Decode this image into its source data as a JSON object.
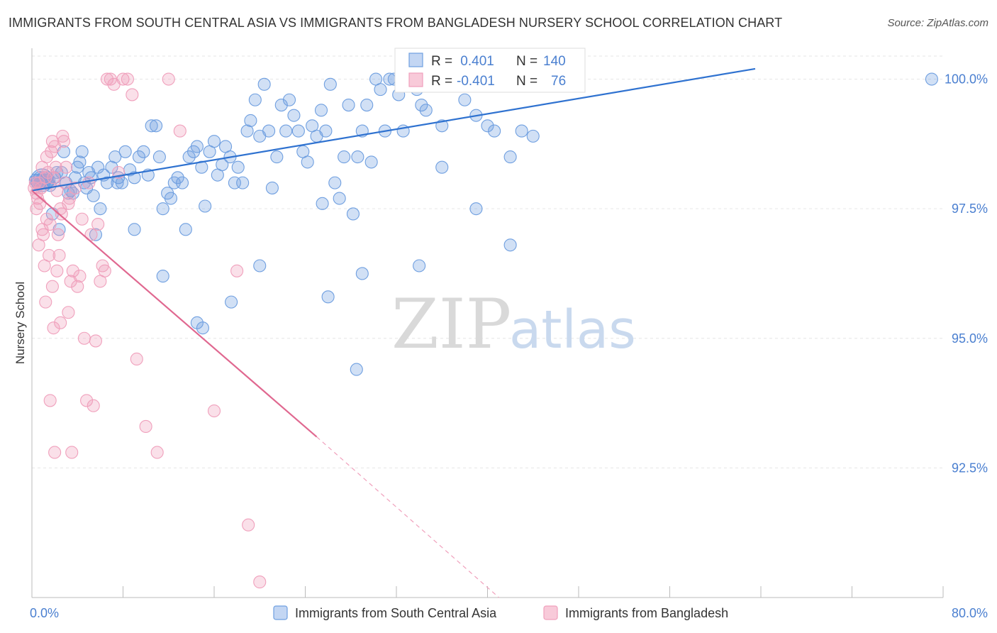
{
  "title": "IMMIGRANTS FROM SOUTH CENTRAL ASIA VS IMMIGRANTS FROM BANGLADESH NURSERY SCHOOL CORRELATION CHART",
  "source": "Source: ZipAtlas.com",
  "watermark": {
    "zip": "ZIP",
    "atlas": "atlas"
  },
  "colors": {
    "blue": "#6f9fe0",
    "blue_line": "#2f72d0",
    "pink": "#f0a0bc",
    "pink_line": "#e06890",
    "axis_text": "#4a7fd0"
  },
  "legend": {
    "r_label": "R =",
    "n_label": "N =",
    "blue": {
      "r": " 0.401",
      "n": "140"
    },
    "pink": {
      "r": "-0.401",
      "n": "76"
    }
  },
  "chart_data": {
    "type": "scatter",
    "title": "IMMIGRANTS FROM SOUTH CENTRAL ASIA VS IMMIGRANTS FROM BANGLADESH NURSERY SCHOOL CORRELATION CHART",
    "xlabel": "",
    "ylabel": "Nursery School",
    "xlim": [
      0,
      80
    ],
    "ylim": [
      90.0,
      100.5
    ],
    "x_tick_labels": [
      "0.0%",
      "80.0%"
    ],
    "y_ticks": [
      {
        "value": 100.0,
        "label": "100.0%"
      },
      {
        "value": 97.5,
        "label": "97.5%"
      },
      {
        "value": 95.0,
        "label": "95.0%"
      },
      {
        "value": 92.5,
        "label": "92.5%"
      }
    ],
    "grid": true,
    "legend_position": "bottom",
    "series": [
      {
        "name": "Immigrants from South Central Asia",
        "color": "#6f9fe0",
        "trend": {
          "x": [
            0.0,
            63.5
          ],
          "y": [
            97.85,
            100.2
          ]
        },
        "points": [
          [
            0.3,
            98.05
          ],
          [
            0.5,
            98.05
          ],
          [
            0.6,
            98.0
          ],
          [
            0.7,
            98.1
          ],
          [
            0.8,
            98.05
          ],
          [
            0.9,
            98.0
          ],
          [
            1.0,
            98.1
          ],
          [
            1.1,
            98.0
          ],
          [
            1.2,
            98.05
          ],
          [
            1.3,
            98.1
          ],
          [
            1.4,
            98.0
          ],
          [
            1.5,
            98.05
          ],
          [
            1.6,
            97.95
          ],
          [
            1.8,
            97.4
          ],
          [
            2.0,
            98.1
          ],
          [
            2.2,
            98.2
          ],
          [
            2.4,
            97.1
          ],
          [
            2.6,
            98.2
          ],
          [
            2.8,
            98.6
          ],
          [
            3.0,
            98.0
          ],
          [
            3.2,
            97.8
          ],
          [
            3.4,
            97.85
          ],
          [
            3.6,
            97.8
          ],
          [
            3.8,
            98.1
          ],
          [
            4.0,
            98.3
          ],
          [
            4.2,
            98.4
          ],
          [
            4.4,
            98.6
          ],
          [
            4.6,
            98.0
          ],
          [
            4.8,
            97.9
          ],
          [
            5.0,
            98.2
          ],
          [
            5.2,
            98.1
          ],
          [
            5.4,
            97.75
          ],
          [
            5.6,
            97.0
          ],
          [
            5.8,
            98.3
          ],
          [
            6.0,
            97.5
          ],
          [
            6.3,
            98.15
          ],
          [
            6.6,
            98.0
          ],
          [
            7.0,
            98.3
          ],
          [
            7.3,
            98.5
          ],
          [
            7.6,
            98.1
          ],
          [
            7.9,
            98.0
          ],
          [
            8.2,
            98.6
          ],
          [
            8.6,
            98.25
          ],
          [
            9.0,
            98.1
          ],
          [
            9.4,
            98.5
          ],
          [
            9.8,
            98.6
          ],
          [
            10.2,
            98.15
          ],
          [
            10.5,
            99.1
          ],
          [
            10.9,
            99.1
          ],
          [
            11.2,
            98.5
          ],
          [
            11.5,
            97.5
          ],
          [
            11.9,
            97.8
          ],
          [
            12.2,
            97.7
          ],
          [
            12.5,
            98.0
          ],
          [
            12.8,
            98.1
          ],
          [
            13.2,
            98.0
          ],
          [
            13.5,
            97.1
          ],
          [
            13.8,
            98.5
          ],
          [
            14.2,
            98.6
          ],
          [
            14.5,
            98.7
          ],
          [
            14.9,
            98.3
          ],
          [
            15.2,
            97.55
          ],
          [
            15.6,
            98.6
          ],
          [
            16.0,
            98.8
          ],
          [
            16.3,
            98.15
          ],
          [
            16.7,
            98.35
          ],
          [
            17.0,
            98.7
          ],
          [
            17.4,
            98.5
          ],
          [
            17.8,
            98.0
          ],
          [
            18.1,
            98.3
          ],
          [
            18.5,
            98.0
          ],
          [
            18.9,
            99.0
          ],
          [
            19.2,
            99.2
          ],
          [
            19.6,
            99.6
          ],
          [
            20.0,
            98.9
          ],
          [
            20.4,
            99.9
          ],
          [
            20.8,
            99.0
          ],
          [
            21.1,
            97.9
          ],
          [
            21.5,
            98.5
          ],
          [
            21.9,
            99.5
          ],
          [
            22.3,
            99.0
          ],
          [
            22.6,
            99.6
          ],
          [
            23.0,
            99.3
          ],
          [
            23.4,
            99.0
          ],
          [
            23.8,
            98.6
          ],
          [
            24.2,
            98.4
          ],
          [
            24.6,
            99.1
          ],
          [
            25.0,
            98.9
          ],
          [
            25.4,
            99.4
          ],
          [
            25.8,
            99.0
          ],
          [
            26.2,
            99.9
          ],
          [
            26.6,
            98.0
          ],
          [
            27.0,
            97.7
          ],
          [
            27.4,
            98.5
          ],
          [
            27.8,
            99.5
          ],
          [
            28.2,
            97.4
          ],
          [
            28.6,
            98.5
          ],
          [
            29.0,
            99.0
          ],
          [
            29.4,
            99.5
          ],
          [
            29.8,
            98.4
          ],
          [
            30.2,
            100.0
          ],
          [
            30.6,
            99.8
          ],
          [
            31.0,
            99.0
          ],
          [
            31.4,
            100.0
          ],
          [
            31.8,
            100.0
          ],
          [
            32.2,
            99.7
          ],
          [
            32.6,
            99.0
          ],
          [
            33.0,
            100.0
          ],
          [
            33.4,
            100.0
          ],
          [
            33.8,
            99.8
          ],
          [
            34.2,
            99.5
          ],
          [
            34.6,
            99.4
          ],
          [
            35.0,
            100.0
          ],
          [
            35.4,
            100.0
          ],
          [
            36.0,
            99.1
          ],
          [
            37.0,
            100.0
          ],
          [
            38.0,
            99.6
          ],
          [
            39.0,
            99.3
          ],
          [
            40.0,
            99.1
          ],
          [
            40.6,
            99.0
          ],
          [
            41.0,
            100.0
          ],
          [
            42.0,
            98.5
          ],
          [
            43.0,
            99.0
          ],
          [
            44.0,
            98.9
          ],
          [
            79.0,
            100.0
          ],
          [
            36.0,
            98.3
          ],
          [
            25.5,
            97.6
          ],
          [
            29.0,
            96.25
          ],
          [
            20.0,
            96.4
          ],
          [
            17.5,
            95.7
          ],
          [
            26.0,
            95.8
          ],
          [
            14.5,
            95.3
          ],
          [
            15.0,
            95.2
          ],
          [
            11.5,
            96.2
          ],
          [
            28.5,
            94.4
          ],
          [
            34.0,
            96.4
          ],
          [
            39.0,
            97.5
          ],
          [
            42.0,
            96.8
          ],
          [
            9.0,
            97.1
          ],
          [
            7.5,
            98.0
          ]
        ]
      },
      {
        "name": "Immigrants from Bangladesh",
        "color": "#f0a0bc",
        "trend": {
          "x": [
            0.0,
            25.0
          ],
          "y": [
            97.85,
            93.1
          ]
        },
        "trend_dashed": {
          "x": [
            25.0,
            41.0
          ],
          "y": [
            93.1,
            90.0
          ]
        },
        "points": [
          [
            0.2,
            97.9
          ],
          [
            0.3,
            98.0
          ],
          [
            0.4,
            97.8
          ],
          [
            0.5,
            97.7
          ],
          [
            0.6,
            98.0
          ],
          [
            0.7,
            97.6
          ],
          [
            0.8,
            97.9
          ],
          [
            0.9,
            97.1
          ],
          [
            1.0,
            97.0
          ],
          [
            1.1,
            96.4
          ],
          [
            1.2,
            98.1
          ],
          [
            1.3,
            97.3
          ],
          [
            1.4,
            98.2
          ],
          [
            1.5,
            96.6
          ],
          [
            1.6,
            97.2
          ],
          [
            1.7,
            98.6
          ],
          [
            1.8,
            98.8
          ],
          [
            1.9,
            98.1
          ],
          [
            2.0,
            98.7
          ],
          [
            2.1,
            98.3
          ],
          [
            2.2,
            96.3
          ],
          [
            2.3,
            97.0
          ],
          [
            2.4,
            96.6
          ],
          [
            2.5,
            97.5
          ],
          [
            2.6,
            97.4
          ],
          [
            2.7,
            98.9
          ],
          [
            2.8,
            98.8
          ],
          [
            3.0,
            98.3
          ],
          [
            3.2,
            97.6
          ],
          [
            3.4,
            96.1
          ],
          [
            3.6,
            96.3
          ],
          [
            3.8,
            97.9
          ],
          [
            4.0,
            96.0
          ],
          [
            4.2,
            96.2
          ],
          [
            4.4,
            97.3
          ],
          [
            4.6,
            95.0
          ],
          [
            4.8,
            93.8
          ],
          [
            5.0,
            98.0
          ],
          [
            5.2,
            97.0
          ],
          [
            5.4,
            93.7
          ],
          [
            5.6,
            94.95
          ],
          [
            5.8,
            97.2
          ],
          [
            6.0,
            96.1
          ],
          [
            6.2,
            96.4
          ],
          [
            6.4,
            96.3
          ],
          [
            6.6,
            100.0
          ],
          [
            6.9,
            100.0
          ],
          [
            7.2,
            99.9
          ],
          [
            7.6,
            98.2
          ],
          [
            8.0,
            100.0
          ],
          [
            8.4,
            100.0
          ],
          [
            8.8,
            99.7
          ],
          [
            9.2,
            94.6
          ],
          [
            10.0,
            93.3
          ],
          [
            11.0,
            92.8
          ],
          [
            12.0,
            100.0
          ],
          [
            13.0,
            99.0
          ],
          [
            16.0,
            93.6
          ],
          [
            18.0,
            96.3
          ],
          [
            19.0,
            91.4
          ],
          [
            20.0,
            90.3
          ],
          [
            1.9,
            95.2
          ],
          [
            2.5,
            95.3
          ],
          [
            3.2,
            95.5
          ],
          [
            1.2,
            95.7
          ],
          [
            2.0,
            92.8
          ],
          [
            3.5,
            92.8
          ],
          [
            1.6,
            93.8
          ],
          [
            0.4,
            97.5
          ],
          [
            0.9,
            98.3
          ],
          [
            1.3,
            98.5
          ],
          [
            2.2,
            97.85
          ],
          [
            2.9,
            98.0
          ],
          [
            3.3,
            97.7
          ],
          [
            0.6,
            96.8
          ],
          [
            1.8,
            96.0
          ]
        ]
      }
    ]
  },
  "bottom_legend": [
    {
      "label": "Immigrants from South Central Asia"
    },
    {
      "label": "Immigrants from Bangladesh"
    }
  ]
}
